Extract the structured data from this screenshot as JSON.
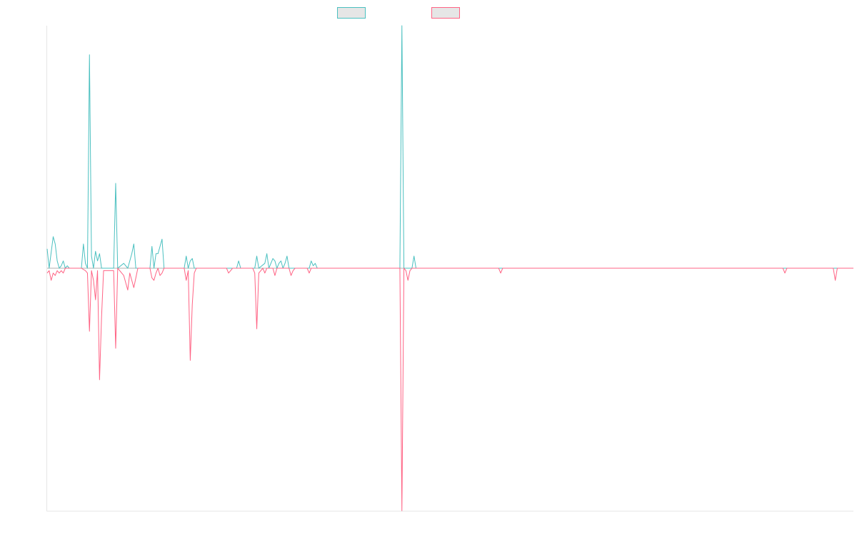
{
  "chart_data": {
    "type": "line",
    "title": "",
    "xlabel": "",
    "ylabel": "",
    "grid": false,
    "legend_position": "top-center",
    "y_baseline": 0,
    "ylim": [
      -1.0,
      1.0
    ],
    "x_count": 400,
    "series": [
      {
        "color": "#4bc0c0",
        "points": [
          [
            0,
            0.08
          ],
          [
            1,
            0.0
          ],
          [
            3,
            0.13
          ],
          [
            4,
            0.1
          ],
          [
            5,
            0.03
          ],
          [
            6,
            0.0
          ],
          [
            7,
            0.01
          ],
          [
            8,
            0.03
          ],
          [
            9,
            0.0
          ],
          [
            10,
            0.01
          ],
          [
            11,
            0.0
          ],
          [
            17,
            0.0
          ],
          [
            18,
            0.1
          ],
          [
            19,
            0.02
          ],
          [
            20,
            0.0
          ],
          [
            21,
            0.88
          ],
          [
            22,
            0.05
          ],
          [
            23,
            0.0
          ],
          [
            24,
            0.07
          ],
          [
            25,
            0.03
          ],
          [
            26,
            0.06
          ],
          [
            27,
            0.0
          ],
          [
            33,
            0.0
          ],
          [
            34,
            0.35
          ],
          [
            35,
            0.0
          ],
          [
            38,
            0.02
          ],
          [
            40,
            0.0
          ],
          [
            42,
            0.06
          ],
          [
            43,
            0.1
          ],
          [
            44,
            0.0
          ],
          [
            51,
            0.0
          ],
          [
            52,
            0.09
          ],
          [
            53,
            0.0
          ],
          [
            54,
            0.06
          ],
          [
            55,
            0.06
          ],
          [
            57,
            0.12
          ],
          [
            58,
            0.0
          ],
          [
            68,
            0.0
          ],
          [
            69,
            0.05
          ],
          [
            70,
            0.0
          ],
          [
            71,
            0.03
          ],
          [
            72,
            0.04
          ],
          [
            73,
            0.0
          ],
          [
            94,
            0.0
          ],
          [
            95,
            0.03
          ],
          [
            96,
            0.0
          ],
          [
            103,
            0.0
          ],
          [
            104,
            0.05
          ],
          [
            105,
            0.0
          ],
          [
            108,
            0.02
          ],
          [
            109,
            0.06
          ],
          [
            110,
            0.0
          ],
          [
            112,
            0.04
          ],
          [
            113,
            0.03
          ],
          [
            114,
            0.0
          ],
          [
            115,
            0.02
          ],
          [
            116,
            0.03
          ],
          [
            117,
            0.0
          ],
          [
            118,
            0.02
          ],
          [
            119,
            0.05
          ],
          [
            120,
            0.0
          ],
          [
            130,
            0.0
          ],
          [
            131,
            0.03
          ],
          [
            132,
            0.01
          ],
          [
            133,
            0.02
          ],
          [
            134,
            0.0
          ],
          [
            175,
            0.0
          ],
          [
            176,
            1.0
          ],
          [
            177,
            0.0
          ],
          [
            181,
            0.0
          ],
          [
            182,
            0.05
          ],
          [
            183,
            0.0
          ],
          [
            400,
            0.0
          ]
        ]
      },
      {
        "color": "#ff6384",
        "points": [
          [
            0,
            -0.02
          ],
          [
            1,
            -0.01
          ],
          [
            2,
            -0.05
          ],
          [
            3,
            -0.02
          ],
          [
            4,
            -0.03
          ],
          [
            5,
            -0.01
          ],
          [
            6,
            -0.02
          ],
          [
            7,
            -0.01
          ],
          [
            8,
            -0.02
          ],
          [
            9,
            0.0
          ],
          [
            17,
            0.0
          ],
          [
            19,
            -0.01
          ],
          [
            20,
            -0.02
          ],
          [
            21,
            -0.26
          ],
          [
            22,
            -0.01
          ],
          [
            23,
            -0.05
          ],
          [
            24,
            -0.13
          ],
          [
            25,
            -0.01
          ],
          [
            26,
            -0.46
          ],
          [
            27,
            -0.2
          ],
          [
            28,
            -0.01
          ],
          [
            33,
            -0.01
          ],
          [
            34,
            -0.33
          ],
          [
            35,
            0.0
          ],
          [
            38,
            -0.03
          ],
          [
            40,
            -0.09
          ],
          [
            41,
            -0.02
          ],
          [
            43,
            -0.08
          ],
          [
            44,
            -0.04
          ],
          [
            45,
            0.0
          ],
          [
            51,
            0.0
          ],
          [
            52,
            -0.04
          ],
          [
            53,
            -0.05
          ],
          [
            54,
            -0.02
          ],
          [
            55,
            0.0
          ],
          [
            56,
            -0.03
          ],
          [
            57,
            -0.02
          ],
          [
            58,
            0.0
          ],
          [
            68,
            0.0
          ],
          [
            69,
            -0.05
          ],
          [
            70,
            -0.01
          ],
          [
            71,
            -0.38
          ],
          [
            72,
            -0.15
          ],
          [
            73,
            -0.02
          ],
          [
            74,
            0.0
          ],
          [
            89,
            0.0
          ],
          [
            90,
            -0.02
          ],
          [
            91,
            -0.01
          ],
          [
            92,
            0.0
          ],
          [
            102,
            0.0
          ],
          [
            103,
            -0.02
          ],
          [
            104,
            -0.25
          ],
          [
            105,
            -0.02
          ],
          [
            106,
            -0.01
          ],
          [
            107,
            0.0
          ],
          [
            108,
            -0.02
          ],
          [
            109,
            0.0
          ],
          [
            112,
            0.0
          ],
          [
            113,
            -0.03
          ],
          [
            114,
            0.0
          ],
          [
            120,
            0.0
          ],
          [
            121,
            -0.03
          ],
          [
            122,
            -0.01
          ],
          [
            123,
            0.0
          ],
          [
            129,
            0.0
          ],
          [
            130,
            -0.02
          ],
          [
            131,
            0.0
          ],
          [
            175,
            0.0
          ],
          [
            176,
            -1.0
          ],
          [
            177,
            0.0
          ],
          [
            178,
            -0.01
          ],
          [
            179,
            -0.05
          ],
          [
            180,
            -0.01
          ],
          [
            181,
            0.0
          ],
          [
            224,
            0.0
          ],
          [
            225,
            -0.02
          ],
          [
            226,
            0.0
          ],
          [
            365,
            0.0
          ],
          [
            366,
            -0.02
          ],
          [
            367,
            0.0
          ],
          [
            390,
            0.0
          ],
          [
            391,
            -0.05
          ],
          [
            392,
            0.0
          ],
          [
            400,
            0.0
          ]
        ]
      }
    ]
  }
}
